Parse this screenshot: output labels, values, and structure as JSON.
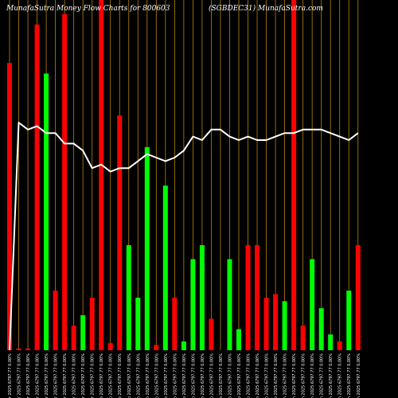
{
  "chart_data": {
    "type": "bar",
    "title_left": "MunafaSutra  Money Flow  Charts for 800603",
    "title_right": "(SGBDEC31) MunafaSutra.com",
    "ylim": [
      0,
      100
    ],
    "colors": {
      "background": "#000000",
      "gridline": "#b8860b",
      "up": "#00ff00",
      "down": "#ff0000",
      "line": "#ffffff"
    },
    "categories": [
      "14 Mar 2025 6797.77 0.00%",
      "13 Mar 2025 6797.77 0.00%",
      "12 Mar 2025 6797.77 0.00%",
      "11 Mar 2025 6797.77 0.00%",
      "10 Mar 2025 6797.77 0.00%",
      "07 Mar 2025 6797.77 0.00%",
      "06 Mar 2025 6797.77 0.00%",
      "05 Mar 2025 6797.77 0.00%",
      "04 Mar 2025 6797.77 0.00%",
      "03 Mar 2025 6797.77 0.00%",
      "28 Feb 2025 6797.77 0.00%",
      "27 Feb 2025 6797.77 0.00%",
      "26 Feb 2025 6797.77 0.00%",
      "25 Feb 2025 6797.77 0.00%",
      "24 Feb 2025 6797.77 0.00%",
      "21 Feb 2025 6797.77 0.00%",
      "20 Feb 2025 6797.77 0.00%",
      "19 Feb 2025 6797.77 0.00%",
      "18 Feb 2025 6797.77 0.00%",
      "17 Feb 2025 6797.77 0.00%",
      "14 Feb 2025 6797.77 0.00%",
      "13 Feb 2025 6797.77 0.00%",
      "12 Feb 2025 6797.77 0.00%",
      "11 Feb 2025 6797.77 0.00%",
      "10 Feb 2025 6797.77 0.00%",
      "07 Feb 2025 6797.77 0.00%",
      "06 Feb 2025 6797.77 0.00%",
      "05 Feb 2025 6797.77 0.00%",
      "04 Feb 2025 6797.77 0.00%",
      "03 Feb 2025 6797.77 0.00%",
      "31 Jan 2025 6797.77 0.00%",
      "30 Jan 2025 6797.77 0.00%",
      "29 Jan 2025 6797.77 0.00%",
      "28 Jan 2025 6797.77 0.00%",
      "27 Jan 2025 6797.77 0.00%",
      "24 Jan 2025 6797.77 0.00%",
      "23 Jan 2025 6797.77 0.00%",
      "22 Jan 2025 6797.77 0.00%",
      "21 Jan 2025 6797.77 0.00%"
    ],
    "values": [
      82,
      0.5,
      0.5,
      93,
      79,
      17,
      96,
      7,
      10,
      15,
      100,
      2,
      67,
      30,
      15,
      58,
      1.5,
      47,
      15,
      2.5,
      26,
      30,
      9,
      0,
      26,
      6,
      30,
      30,
      15,
      16,
      14,
      100,
      7,
      26,
      12,
      4.5,
      2.5,
      17,
      30
    ],
    "directions": [
      "down",
      "down",
      "down",
      "down",
      "up",
      "down",
      "down",
      "down",
      "up",
      "down",
      "down",
      "down",
      "down",
      "up",
      "up",
      "up",
      "down",
      "up",
      "down",
      "up",
      "up",
      "up",
      "down",
      "up",
      "up",
      "up",
      "down",
      "down",
      "down",
      "down",
      "up",
      "down",
      "down",
      "up",
      "up",
      "up",
      "down",
      "up",
      "down"
    ],
    "line_values": [
      0,
      65,
      63,
      64,
      62,
      62,
      59,
      59,
      57,
      52,
      53,
      51,
      52,
      52,
      54,
      56,
      55,
      54,
      55,
      57,
      61,
      60,
      63,
      63,
      61,
      60,
      61,
      60,
      60,
      61,
      62,
      62,
      63,
      63,
      63,
      62,
      61,
      60,
      62
    ]
  }
}
